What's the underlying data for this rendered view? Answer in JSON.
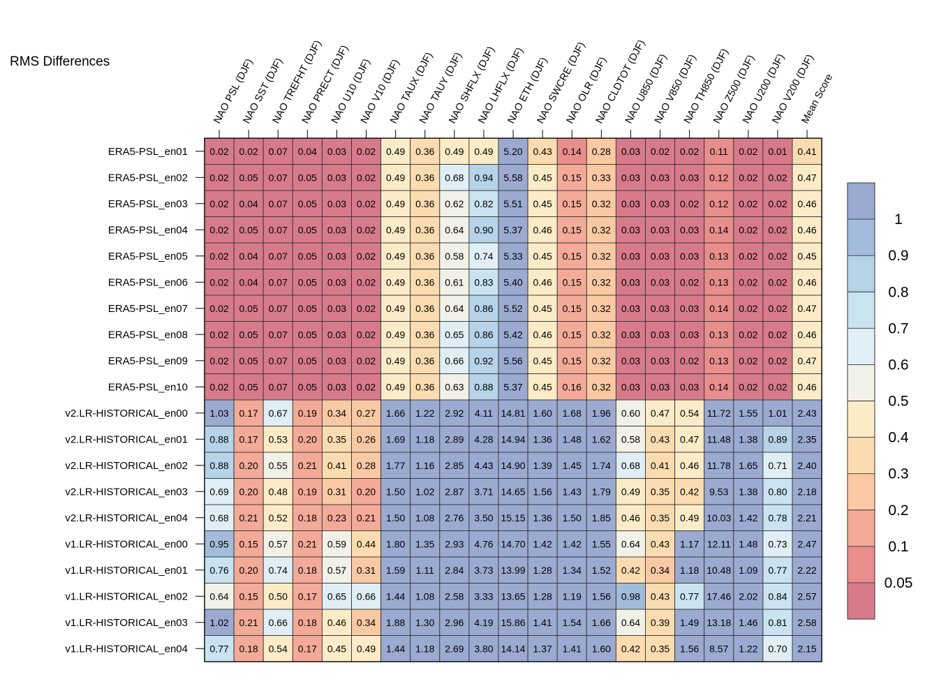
{
  "chart_data": {
    "type": "heatmap",
    "title": "RMS Differences",
    "columns": [
      "NAO PSL (DJF)",
      "NAO SST (DJF)",
      "NAO TREFHT (DJF)",
      "NAO PRECT (DJF)",
      "NAO U10 (DJF)",
      "NAO V10 (DJF)",
      "NAO TAUX (DJF)",
      "NAO TAUY (DJF)",
      "NAO SHFLX (DJF)",
      "NAO LHFLX (DJF)",
      "NAO ETH (DJF)",
      "NAO SWCRE (DJF)",
      "NAO OLR (DJF)",
      "NAO CLDTOT (DJF)",
      "NAO U850 (DJF)",
      "NAO V850 (DJF)",
      "NAO TH850 (DJF)",
      "NAO Z500 (DJF)",
      "NAO U200 (DJF)",
      "NAO V200 (DJF)",
      "Mean Score"
    ],
    "rows": [
      "ERA5-PSL_en01",
      "ERA5-PSL_en02",
      "ERA5-PSL_en03",
      "ERA5-PSL_en04",
      "ERA5-PSL_en05",
      "ERA5-PSL_en06",
      "ERA5-PSL_en07",
      "ERA5-PSL_en08",
      "ERA5-PSL_en09",
      "ERA5-PSL_en10",
      "v2.LR-HISTORICAL_en00",
      "v2.LR-HISTORICAL_en01",
      "v2.LR-HISTORICAL_en02",
      "v2.LR-HISTORICAL_en03",
      "v2.LR-HISTORICAL_en04",
      "v1.LR-HISTORICAL_en00",
      "v1.LR-HISTORICAL_en01",
      "v1.LR-HISTORICAL_en02",
      "v1.LR-HISTORICAL_en03",
      "v1.LR-HISTORICAL_en04"
    ],
    "values": [
      [
        "0.02",
        "0.02",
        "0.07",
        "0.04",
        "0.03",
        "0.02",
        "0.49",
        "0.36",
        "0.49",
        "0.49",
        "5.20",
        "0.43",
        "0.14",
        "0.28",
        "0.03",
        "0.02",
        "0.02",
        "0.11",
        "0.02",
        "0.01",
        "0.41"
      ],
      [
        "0.02",
        "0.05",
        "0.07",
        "0.05",
        "0.03",
        "0.02",
        "0.49",
        "0.36",
        "0.68",
        "0.94",
        "5.58",
        "0.45",
        "0.15",
        "0.33",
        "0.03",
        "0.03",
        "0.03",
        "0.12",
        "0.02",
        "0.02",
        "0.47"
      ],
      [
        "0.02",
        "0.04",
        "0.07",
        "0.05",
        "0.03",
        "0.02",
        "0.49",
        "0.36",
        "0.62",
        "0.82",
        "5.51",
        "0.45",
        "0.15",
        "0.32",
        "0.03",
        "0.03",
        "0.02",
        "0.12",
        "0.02",
        "0.02",
        "0.46"
      ],
      [
        "0.02",
        "0.05",
        "0.07",
        "0.05",
        "0.03",
        "0.02",
        "0.49",
        "0.36",
        "0.64",
        "0.90",
        "5.37",
        "0.46",
        "0.15",
        "0.32",
        "0.03",
        "0.03",
        "0.03",
        "0.14",
        "0.02",
        "0.02",
        "0.46"
      ],
      [
        "0.02",
        "0.04",
        "0.07",
        "0.05",
        "0.03",
        "0.02",
        "0.49",
        "0.36",
        "0.58",
        "0.74",
        "5.33",
        "0.45",
        "0.15",
        "0.32",
        "0.03",
        "0.03",
        "0.03",
        "0.13",
        "0.02",
        "0.02",
        "0.45"
      ],
      [
        "0.02",
        "0.04",
        "0.07",
        "0.05",
        "0.03",
        "0.02",
        "0.49",
        "0.36",
        "0.61",
        "0.83",
        "5.40",
        "0.46",
        "0.15",
        "0.32",
        "0.03",
        "0.03",
        "0.02",
        "0.13",
        "0.02",
        "0.02",
        "0.46"
      ],
      [
        "0.02",
        "0.05",
        "0.07",
        "0.05",
        "0.03",
        "0.02",
        "0.49",
        "0.36",
        "0.64",
        "0.86",
        "5.52",
        "0.45",
        "0.15",
        "0.32",
        "0.03",
        "0.03",
        "0.03",
        "0.14",
        "0.02",
        "0.02",
        "0.47"
      ],
      [
        "0.02",
        "0.05",
        "0.07",
        "0.05",
        "0.03",
        "0.02",
        "0.49",
        "0.36",
        "0.65",
        "0.86",
        "5.42",
        "0.46",
        "0.15",
        "0.32",
        "0.03",
        "0.03",
        "0.03",
        "0.13",
        "0.02",
        "0.02",
        "0.46"
      ],
      [
        "0.02",
        "0.05",
        "0.07",
        "0.05",
        "0.03",
        "0.02",
        "0.49",
        "0.36",
        "0.66",
        "0.92",
        "5.56",
        "0.45",
        "0.15",
        "0.32",
        "0.03",
        "0.03",
        "0.02",
        "0.13",
        "0.02",
        "0.02",
        "0.47"
      ],
      [
        "0.02",
        "0.05",
        "0.07",
        "0.05",
        "0.03",
        "0.02",
        "0.49",
        "0.36",
        "0.63",
        "0.88",
        "5.37",
        "0.45",
        "0.16",
        "0.32",
        "0.03",
        "0.03",
        "0.03",
        "0.14",
        "0.02",
        "0.02",
        "0.46"
      ],
      [
        "1.03",
        "0.17",
        "0.67",
        "0.19",
        "0.34",
        "0.27",
        "1.66",
        "1.22",
        "2.92",
        "4.11",
        "14.81",
        "1.60",
        "1.68",
        "1.96",
        "0.60",
        "0.47",
        "0.54",
        "11.72",
        "1.55",
        "1.01",
        "2.43"
      ],
      [
        "0.88",
        "0.17",
        "0.53",
        "0.20",
        "0.35",
        "0.26",
        "1.69",
        "1.18",
        "2.89",
        "4.28",
        "14.94",
        "1.36",
        "1.48",
        "1.62",
        "0.58",
        "0.43",
        "0.47",
        "11.48",
        "1.38",
        "0.89",
        "2.35"
      ],
      [
        "0.88",
        "0.20",
        "0.55",
        "0.21",
        "0.41",
        "0.28",
        "1.77",
        "1.16",
        "2.85",
        "4.43",
        "14.90",
        "1.39",
        "1.45",
        "1.74",
        "0.68",
        "0.41",
        "0.46",
        "11.78",
        "1.65",
        "0.71",
        "2.40"
      ],
      [
        "0.69",
        "0.20",
        "0.48",
        "0.19",
        "0.31",
        "0.20",
        "1.50",
        "1.02",
        "2.87",
        "3.71",
        "14.65",
        "1.56",
        "1.43",
        "1.79",
        "0.49",
        "0.35",
        "0.42",
        "9.53",
        "1.38",
        "0.80",
        "2.18"
      ],
      [
        "0.68",
        "0.21",
        "0.52",
        "0.18",
        "0.23",
        "0.21",
        "1.50",
        "1.08",
        "2.76",
        "3.50",
        "15.15",
        "1.36",
        "1.50",
        "1.85",
        "0.46",
        "0.35",
        "0.49",
        "10.03",
        "1.42",
        "0.78",
        "2.21"
      ],
      [
        "0.95",
        "0.15",
        "0.57",
        "0.21",
        "0.59",
        "0.44",
        "1.80",
        "1.35",
        "2.93",
        "4.76",
        "14.70",
        "1.42",
        "1.42",
        "1.55",
        "0.64",
        "0.43",
        "1.17",
        "12.11",
        "1.48",
        "0.73",
        "2.47"
      ],
      [
        "0.76",
        "0.20",
        "0.74",
        "0.18",
        "0.57",
        "0.31",
        "1.59",
        "1.11",
        "2.84",
        "3.73",
        "13.99",
        "1.28",
        "1.34",
        "1.52",
        "0.42",
        "0.34",
        "1.18",
        "10.48",
        "1.09",
        "0.77",
        "2.22"
      ],
      [
        "0.64",
        "0.15",
        "0.50",
        "0.17",
        "0.65",
        "0.66",
        "1.44",
        "1.08",
        "2.58",
        "3.33",
        "13.65",
        "1.28",
        "1.19",
        "1.56",
        "0.98",
        "0.43",
        "0.77",
        "17.46",
        "2.02",
        "0.84",
        "2.57"
      ],
      [
        "1.02",
        "0.21",
        "0.66",
        "0.18",
        "0.46",
        "0.34",
        "1.88",
        "1.30",
        "2.96",
        "4.19",
        "15.86",
        "1.41",
        "1.54",
        "1.66",
        "0.64",
        "0.39",
        "1.49",
        "13.18",
        "1.46",
        "0.81",
        "2.58"
      ],
      [
        "0.77",
        "0.18",
        "0.54",
        "0.17",
        "0.45",
        "0.49",
        "1.44",
        "1.18",
        "2.69",
        "3.80",
        "14.14",
        "1.37",
        "1.41",
        "1.60",
        "0.42",
        "0.35",
        "1.56",
        "8.57",
        "1.22",
        "0.70",
        "2.15"
      ]
    ],
    "colorbar": {
      "labels": [
        "1",
        "0.9",
        "0.8",
        "0.7",
        "0.6",
        "0.5",
        "0.4",
        "0.3",
        "0.2",
        "0.1",
        "0.05"
      ],
      "bins": [
        {
          "min": 1.0,
          "color": "#9baad0"
        },
        {
          "min": 0.95,
          "color": "#a3bcdb"
        },
        {
          "min": 0.85,
          "color": "#b6d3e8"
        },
        {
          "min": 0.75,
          "color": "#c9e3f0"
        },
        {
          "min": 0.65,
          "color": "#e0eff5"
        },
        {
          "min": 0.55,
          "color": "#f1f1e7"
        },
        {
          "min": 0.45,
          "color": "#fbecc7"
        },
        {
          "min": 0.35,
          "color": "#fbdcb0"
        },
        {
          "min": 0.25,
          "color": "#f9c9a4"
        },
        {
          "min": 0.15,
          "color": "#f3aa98"
        },
        {
          "min": 0.075,
          "color": "#e88e8d"
        },
        {
          "min": 0.0,
          "color": "#d77b8b"
        }
      ]
    }
  }
}
